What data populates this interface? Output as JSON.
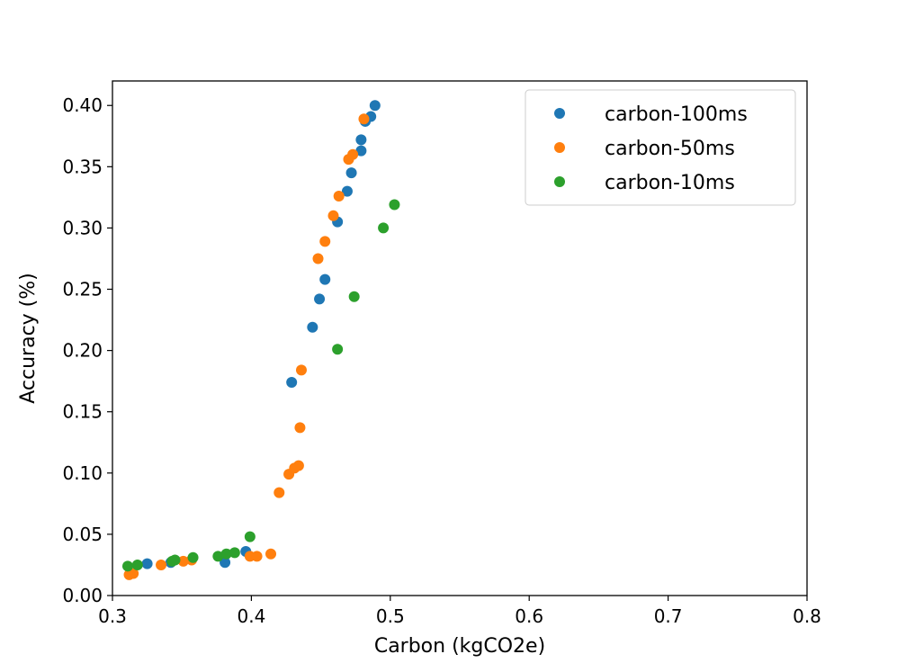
{
  "chart_data": {
    "type": "scatter",
    "title": "",
    "xlabel": "Carbon (kgCO2e)",
    "ylabel": "Accuracy (%)",
    "xlim": [
      0.3,
      0.8
    ],
    "ylim": [
      0.0,
      0.42
    ],
    "xticks": [
      "0.3",
      "0.4",
      "0.5",
      "0.6",
      "0.7",
      "0.8"
    ],
    "yticks": [
      "0.00",
      "0.05",
      "0.10",
      "0.15",
      "0.20",
      "0.25",
      "0.30",
      "0.35",
      "0.40"
    ],
    "grid": false,
    "legend_position": "top-right",
    "series": [
      {
        "name": "carbon-100ms",
        "color": "#1f77b4",
        "points": [
          {
            "x": 0.325,
            "y": 0.026
          },
          {
            "x": 0.342,
            "y": 0.027
          },
          {
            "x": 0.381,
            "y": 0.027
          },
          {
            "x": 0.396,
            "y": 0.036
          },
          {
            "x": 0.429,
            "y": 0.174
          },
          {
            "x": 0.444,
            "y": 0.219
          },
          {
            "x": 0.449,
            "y": 0.242
          },
          {
            "x": 0.453,
            "y": 0.258
          },
          {
            "x": 0.462,
            "y": 0.305
          },
          {
            "x": 0.469,
            "y": 0.33
          },
          {
            "x": 0.472,
            "y": 0.345
          },
          {
            "x": 0.479,
            "y": 0.363
          },
          {
            "x": 0.479,
            "y": 0.372
          },
          {
            "x": 0.482,
            "y": 0.387
          },
          {
            "x": 0.486,
            "y": 0.391
          },
          {
            "x": 0.489,
            "y": 0.4
          }
        ]
      },
      {
        "name": "carbon-50ms",
        "color": "#ff7f0e",
        "points": [
          {
            "x": 0.312,
            "y": 0.017
          },
          {
            "x": 0.315,
            "y": 0.018
          },
          {
            "x": 0.335,
            "y": 0.025
          },
          {
            "x": 0.351,
            "y": 0.028
          },
          {
            "x": 0.357,
            "y": 0.029
          },
          {
            "x": 0.399,
            "y": 0.032
          },
          {
            "x": 0.404,
            "y": 0.032
          },
          {
            "x": 0.414,
            "y": 0.034
          },
          {
            "x": 0.42,
            "y": 0.084
          },
          {
            "x": 0.427,
            "y": 0.099
          },
          {
            "x": 0.431,
            "y": 0.104
          },
          {
            "x": 0.434,
            "y": 0.106
          },
          {
            "x": 0.435,
            "y": 0.137
          },
          {
            "x": 0.436,
            "y": 0.184
          },
          {
            "x": 0.448,
            "y": 0.275
          },
          {
            "x": 0.453,
            "y": 0.289
          },
          {
            "x": 0.459,
            "y": 0.31
          },
          {
            "x": 0.463,
            "y": 0.326
          },
          {
            "x": 0.47,
            "y": 0.356
          },
          {
            "x": 0.473,
            "y": 0.36
          },
          {
            "x": 0.481,
            "y": 0.389
          }
        ]
      },
      {
        "name": "carbon-10ms",
        "color": "#2ca02c",
        "points": [
          {
            "x": 0.311,
            "y": 0.024
          },
          {
            "x": 0.318,
            "y": 0.025
          },
          {
            "x": 0.343,
            "y": 0.028
          },
          {
            "x": 0.345,
            "y": 0.029
          },
          {
            "x": 0.358,
            "y": 0.031
          },
          {
            "x": 0.376,
            "y": 0.032
          },
          {
            "x": 0.382,
            "y": 0.034
          },
          {
            "x": 0.388,
            "y": 0.035
          },
          {
            "x": 0.399,
            "y": 0.048
          },
          {
            "x": 0.462,
            "y": 0.201
          },
          {
            "x": 0.474,
            "y": 0.244
          },
          {
            "x": 0.495,
            "y": 0.3
          },
          {
            "x": 0.503,
            "y": 0.319
          }
        ]
      }
    ]
  }
}
